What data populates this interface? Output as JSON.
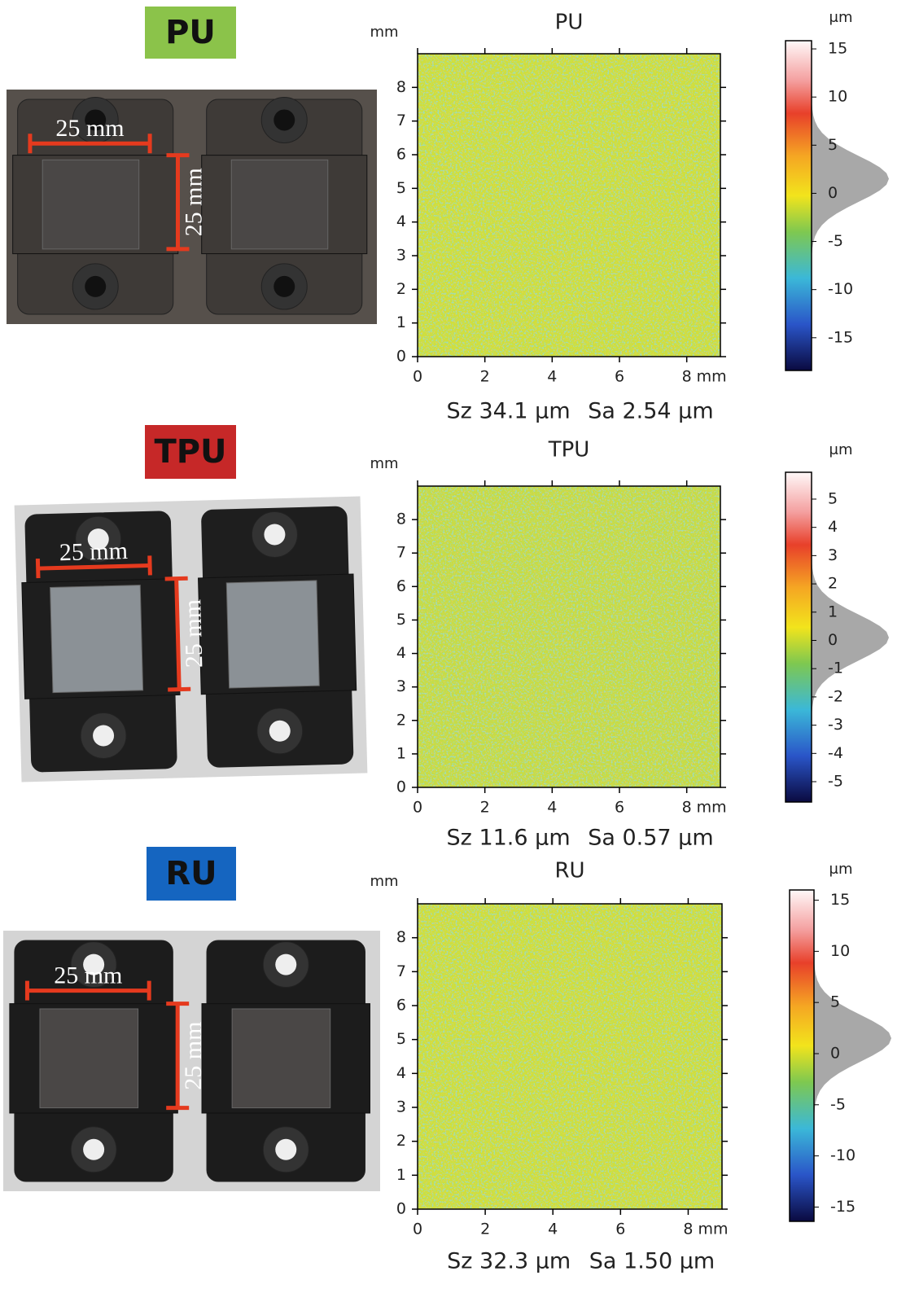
{
  "panels": [
    {
      "label": "PU",
      "label_color": "#8bc34a",
      "title": "PU",
      "y_unit": "mm",
      "x_unit": "mm",
      "xlim": [
        0,
        9
      ],
      "ylim": [
        0,
        9
      ],
      "xticks": [
        0,
        2,
        4,
        6,
        8
      ],
      "yticks": [
        0,
        1,
        2,
        3,
        4,
        5,
        6,
        7,
        8
      ],
      "colorbar_unit": "μm",
      "colorbar_lim": [
        -18.4,
        15.85
      ],
      "colorbar_ticks": [
        15,
        10,
        5,
        0,
        -5,
        -10,
        -15
      ],
      "stats": [
        "Sz 34.1 μm",
        "Sa 2.54 μm"
      ],
      "photo_labels": [
        "25 mm",
        "25 mm"
      ]
    },
    {
      "label": "TPU",
      "label_color": "#c62828",
      "title": "TPU",
      "y_unit": "mm",
      "x_unit": "mm",
      "xlim": [
        0,
        9
      ],
      "ylim": [
        0,
        9
      ],
      "xticks": [
        0,
        2,
        4,
        6,
        8
      ],
      "yticks": [
        0,
        1,
        2,
        3,
        4,
        5,
        6,
        7,
        8
      ],
      "colorbar_unit": "μm",
      "colorbar_lim": [
        -5.72,
        5.95
      ],
      "colorbar_ticks": [
        5,
        4,
        3,
        2,
        1,
        0,
        -1,
        -2,
        -3,
        -4,
        -5
      ],
      "stats": [
        "Sz 11.6 μm",
        "Sa 0.57 μm"
      ],
      "photo_labels": [
        "25 mm",
        "25 mm"
      ]
    },
    {
      "label": "RU",
      "label_color": "#1565c0",
      "title": "RU",
      "y_unit": "mm",
      "x_unit": "mm",
      "xlim": [
        0,
        9
      ],
      "ylim": [
        0,
        9
      ],
      "xticks": [
        0,
        2,
        4,
        6,
        8
      ],
      "yticks": [
        0,
        1,
        2,
        3,
        4,
        5,
        6,
        7,
        8
      ],
      "colorbar_unit": "μm",
      "colorbar_lim": [
        -16.4,
        16.0
      ],
      "colorbar_ticks": [
        15,
        10,
        5,
        0,
        -5,
        -10,
        -15
      ],
      "stats": [
        "Sz 32.3 μm",
        "Sa 1.50 μm"
      ],
      "photo_labels": [
        "25 mm",
        "25 mm"
      ]
    }
  ]
}
